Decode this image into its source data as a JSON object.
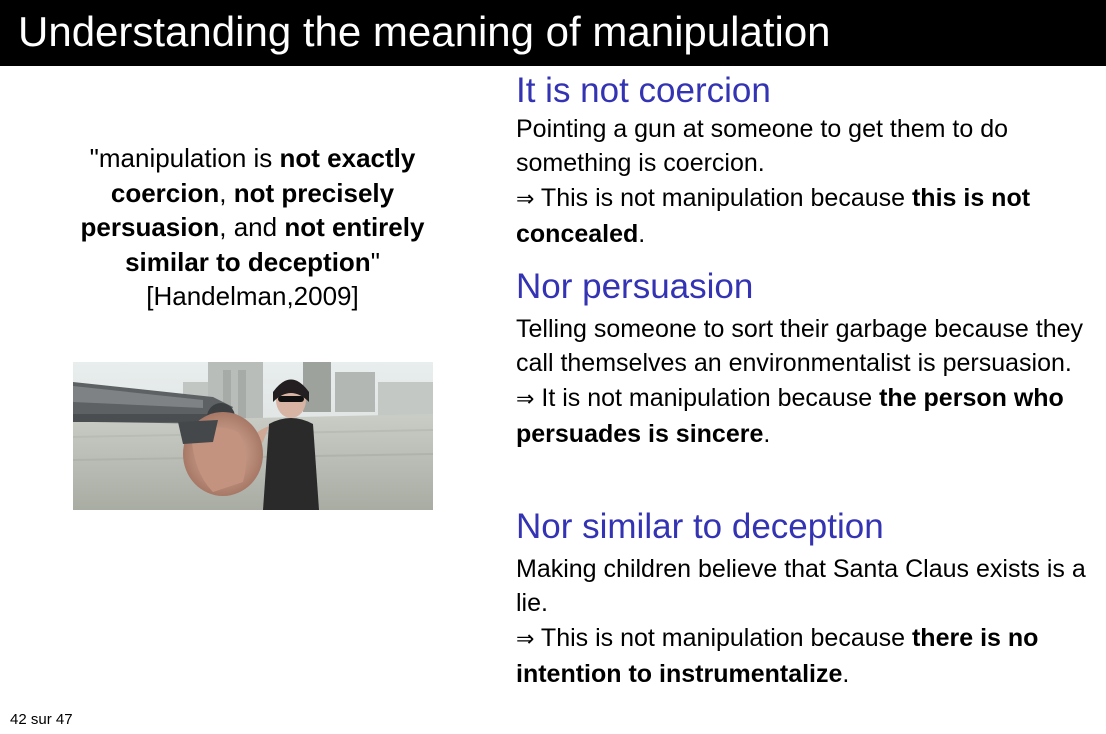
{
  "slide": {
    "title": "Understanding the meaning of manipulation",
    "footer": "42 sur 47"
  },
  "quote": {
    "open": "\"manipulation is ",
    "b1": "not exactly coercion",
    "s1": ", ",
    "b2": "not precisely persuasion",
    "s2": ", and ",
    "b3": "not entirely similar to deception",
    "close": "\"",
    "citation": "[Handelman,2009]"
  },
  "image": {
    "description_icon": "photo-woman-pointing-gun-icon"
  },
  "sections": [
    {
      "heading": "It is not coercion",
      "text": "Pointing a gun at someone to get them to do something is coercion.",
      "arrow": "⇒",
      "conclusion": " This is not manipulation because ",
      "conclusion_bold": "this is not concealed",
      "end": "."
    },
    {
      "heading": "Nor persuasion",
      "text": "Telling someone to sort their garbage because they call themselves an environmentalist is persuasion.",
      "arrow": "⇒",
      "conclusion": " It is not manipulation because ",
      "conclusion_bold": "the person who persuades is sincere",
      "end": "."
    },
    {
      "heading": "Nor similar to deception",
      "text": "Making children believe that Santa Claus exists is a lie.",
      "arrow": "⇒",
      "conclusion": " This is not manipulation because ",
      "conclusion_bold": "there is no intention to instrumentalize",
      "end": "."
    }
  ],
  "colors": {
    "heading": "#3333b3",
    "title_bar": "#000000"
  }
}
